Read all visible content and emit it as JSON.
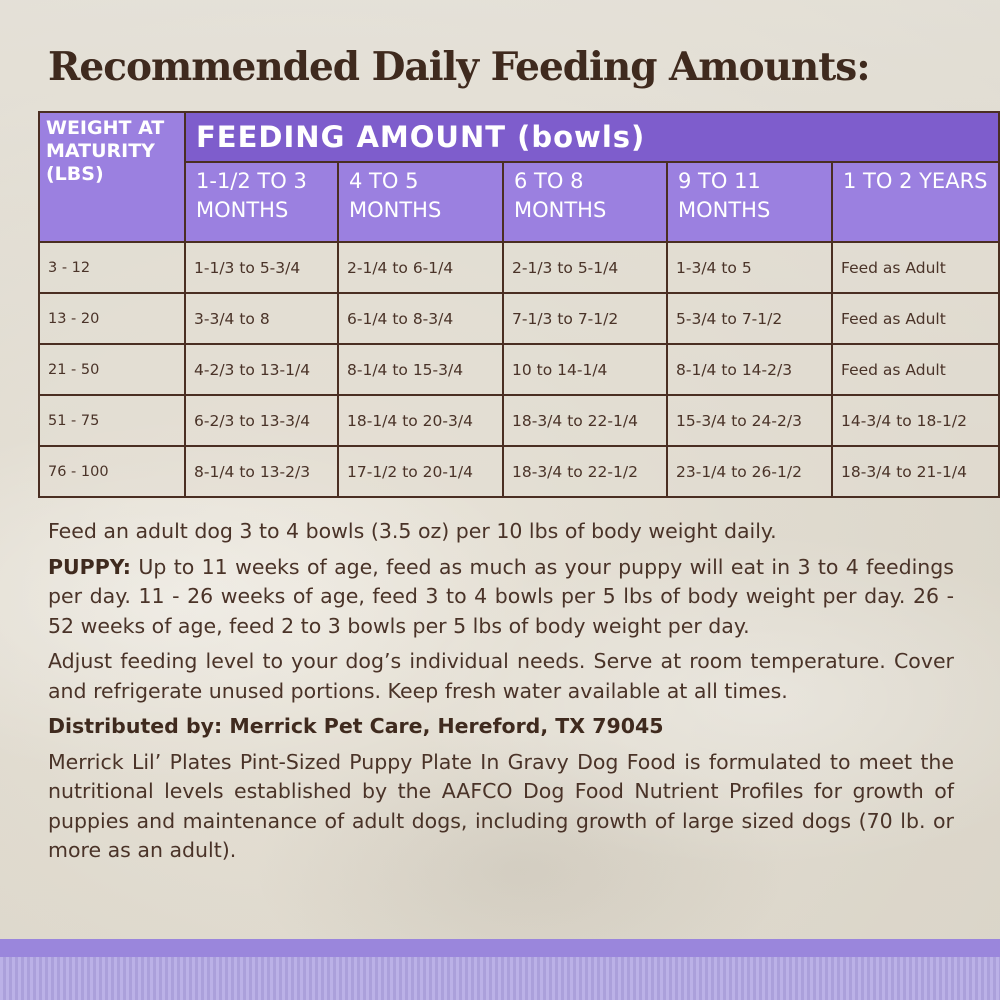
{
  "title": "Recommended Daily Feeding Amounts:",
  "table": {
    "weight_header": "WEIGHT AT MATURITY (LBS)",
    "feeding_header": "FEEDING AMOUNT (bowls)",
    "age_headers": [
      "1-1/2 TO 3 MONTHS",
      "4 TO 5 MONTHS",
      "6 TO 8 MONTHS",
      "9 TO 11 MONTHS",
      "1 TO 2 YEARS"
    ],
    "rows": [
      {
        "weight": "3 - 12",
        "values": [
          "1-1/3 to 5-3/4",
          "2-1/4 to 6-1/4",
          "2-1/3 to 5-1/4",
          "1-3/4 to 5",
          "Feed as Adult"
        ]
      },
      {
        "weight": "13 - 20",
        "values": [
          "3-3/4 to 8",
          "6-1/4 to 8-3/4",
          "7-1/3 to 7-1/2",
          "5-3/4 to 7-1/2",
          "Feed as Adult"
        ]
      },
      {
        "weight": "21 - 50",
        "values": [
          "4-2/3 to 13-1/4",
          "8-1/4 to 15-3/4",
          "10 to 14-1/4",
          "8-1/4 to 14-2/3",
          "Feed as Adult"
        ]
      },
      {
        "weight": "51 - 75",
        "values": [
          "6-2/3 to 13-3/4",
          "18-1/4 to 20-3/4",
          "18-3/4 to 22-1/4",
          "15-3/4 to 24-2/3",
          "14-3/4 to 18-1/2"
        ]
      },
      {
        "weight": "76 - 100",
        "values": [
          "8-1/4 to 13-2/3",
          "17-1/2 to 20-1/4",
          "18-3/4 to 22-1/2",
          "23-1/4 to 26-1/2",
          "18-3/4 to 21-1/4"
        ]
      }
    ]
  },
  "text": {
    "adult": "Feed an adult dog 3 to 4 bowls (3.5 oz) per 10 lbs of body weight daily.",
    "puppy_label": "PUPPY:",
    "puppy": " Up to 11 weeks of age, feed as much as your puppy will eat in 3 to 4 feedings per day. 11 - 26 weeks of age, feed 3 to 4 bowls per 5 lbs of body weight per day. 26 - 52 weeks of age, feed 2 to 3 bowls per 5 lbs of body weight per day.",
    "adjust": "Adjust feeding level to your dog’s individual needs. Serve at room temperature. Cover and refrigerate unused portions. Keep fresh water available at all times.",
    "distributed": "Distributed by: Merrick Pet Care, Hereford, TX 79045",
    "aafco": "Merrick Lil’ Plates Pint-Sized Puppy Plate In Gravy Dog Food is formulated to meet the nutritional levels established by the AAFCO Dog Food Nutrient Profiles for growth of puppies and maintenance of adult dogs, including growth of large sized dogs (70 lb. or more as an adult)."
  },
  "colors": {
    "feeding_header": "#7e5dcc",
    "age_header": "#9b80e0",
    "text": "#4a3328",
    "band_top": "#9a86dc",
    "band_bottom": "#b2a6e4"
  }
}
